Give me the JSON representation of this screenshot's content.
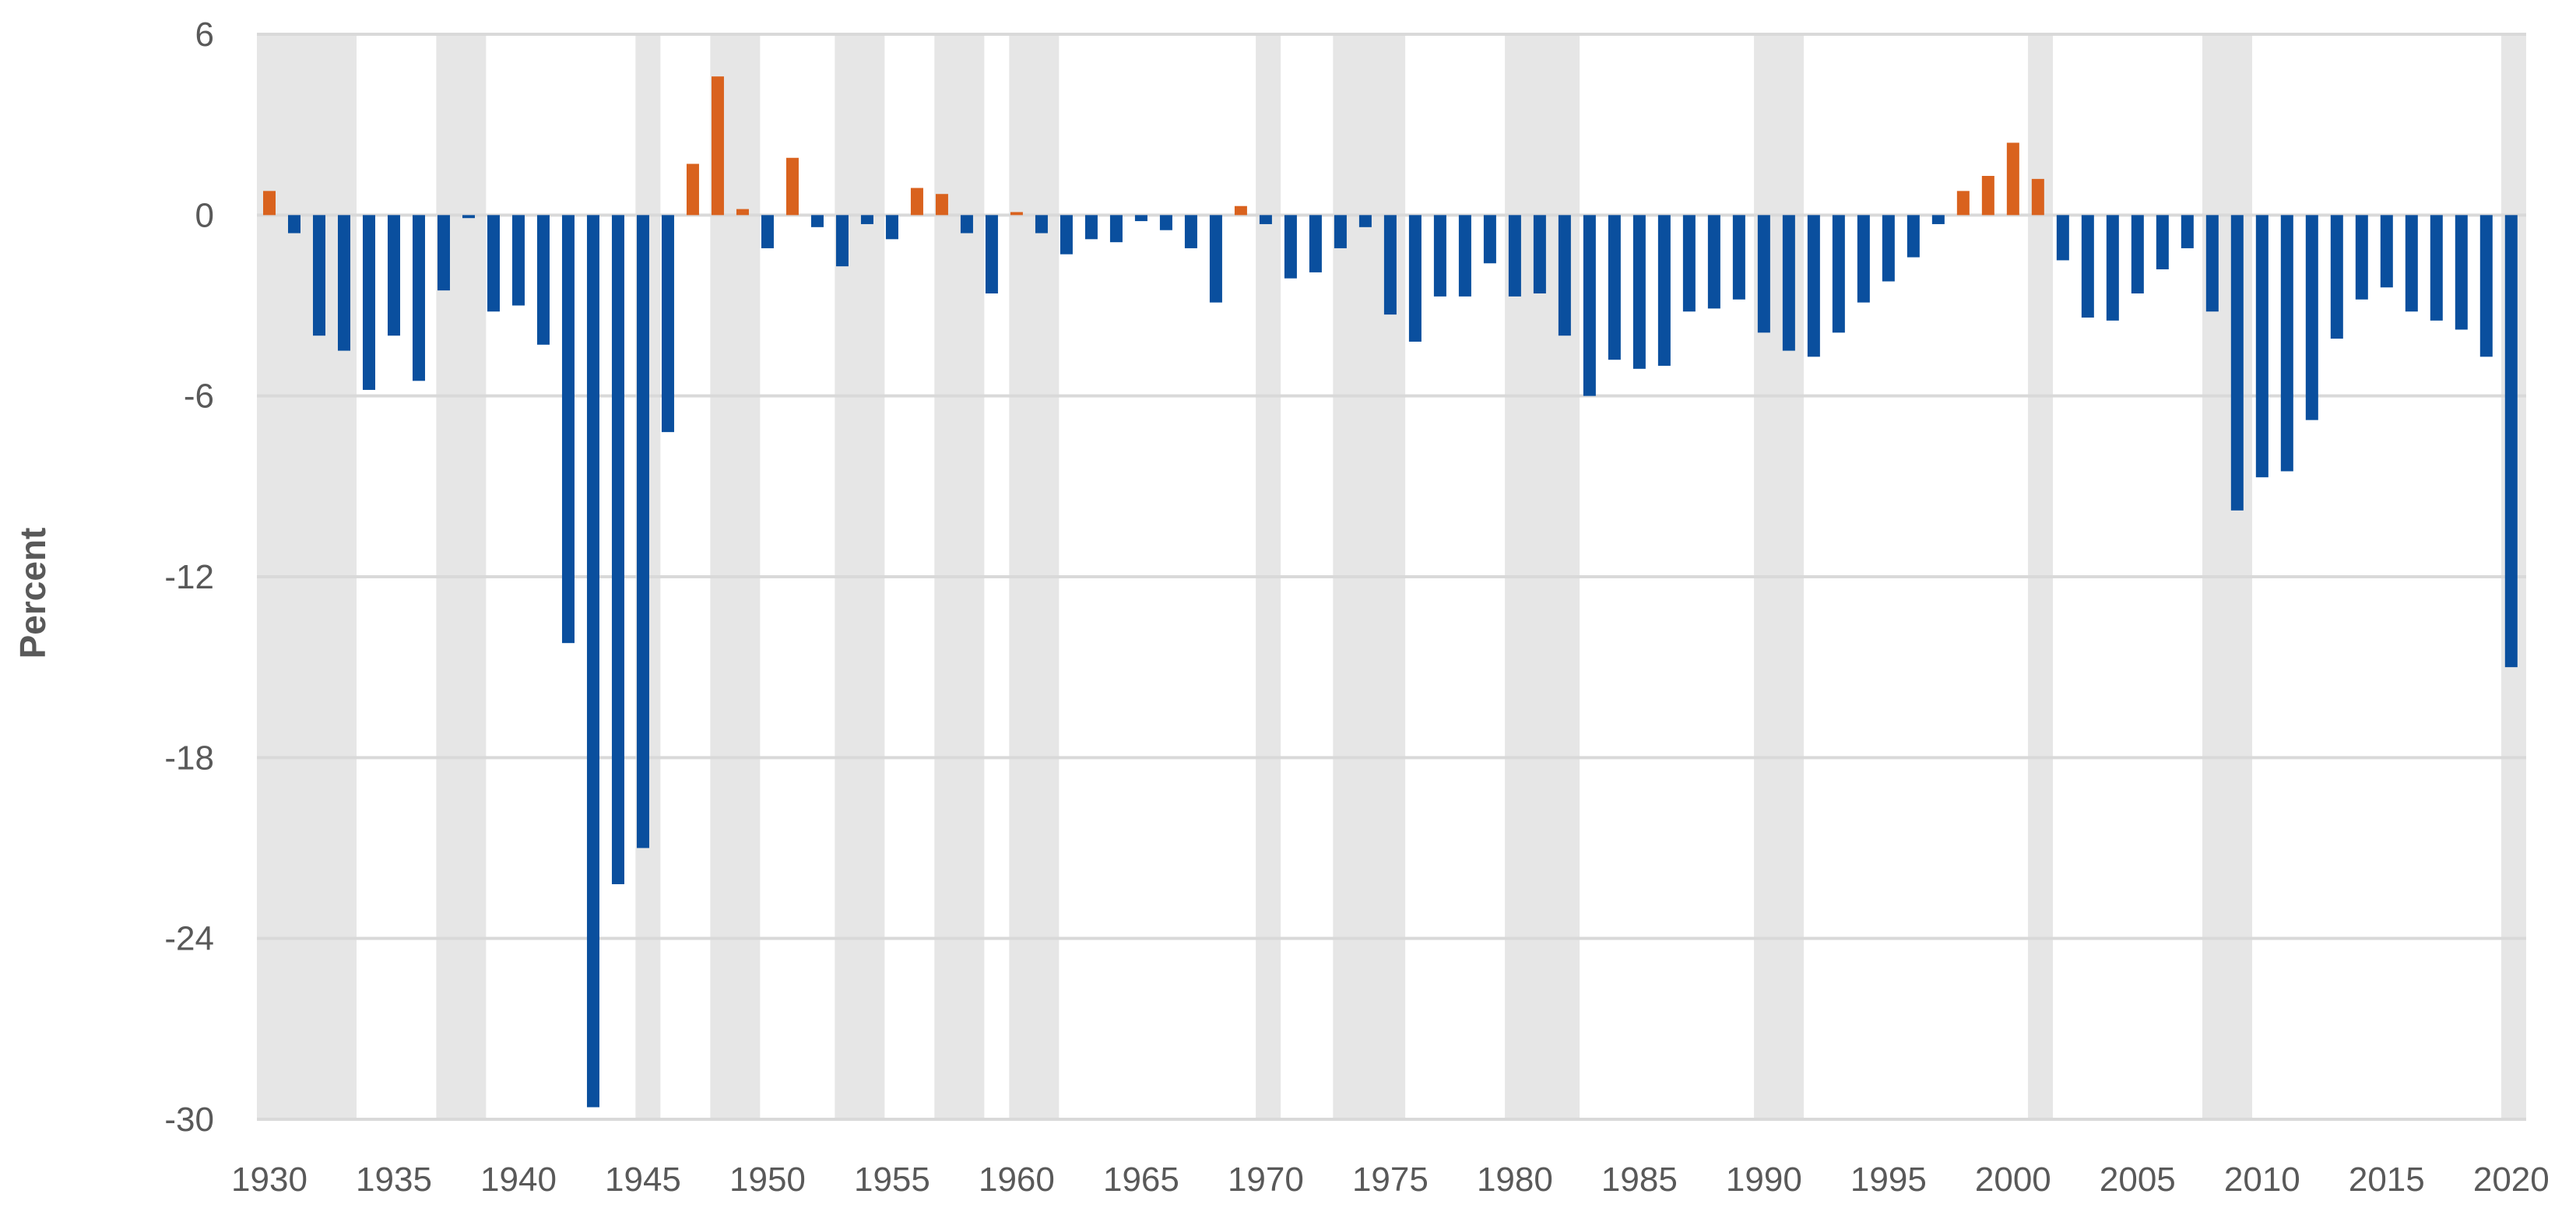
{
  "chart_data": {
    "type": "bar",
    "title": "",
    "xlabel": "",
    "ylabel": "Percent",
    "ylim": [
      -30,
      6
    ],
    "y_ticks": [
      6,
      0,
      -6,
      -12,
      -18,
      -24,
      -30
    ],
    "x_ticks": [
      1930,
      1935,
      1940,
      1945,
      1950,
      1955,
      1960,
      1965,
      1970,
      1975,
      1980,
      1985,
      1990,
      1995,
      2000,
      2005,
      2010,
      2015,
      2020
    ],
    "grid": "horizontal",
    "colors": {
      "deficit": "#0a4f9e",
      "surplus": "#d9621e",
      "recession": "#e6e6e6",
      "grid": "#d9d9d9",
      "text": "#595959"
    },
    "recession_shading": [
      [
        1929.5,
        1933.5
      ],
      [
        1936.7,
        1938.7
      ],
      [
        1944.7,
        1945.7
      ],
      [
        1947.7,
        1949.7
      ],
      [
        1952.7,
        1954.7
      ],
      [
        1956.7,
        1958.7
      ],
      [
        1959.7,
        1961.7
      ],
      [
        1969.6,
        1970.6
      ],
      [
        1972.7,
        1975.6
      ],
      [
        1979.6,
        1982.6
      ],
      [
        1989.6,
        1991.6
      ],
      [
        2000.6,
        2001.6
      ],
      [
        2007.6,
        2009.6
      ],
      [
        2019.6,
        2020.6
      ]
    ],
    "x": [
      1930,
      1931,
      1932,
      1933,
      1934,
      1935,
      1936,
      1937,
      1938,
      1939,
      1940,
      1941,
      1942,
      1943,
      1944,
      1945,
      1946,
      1947,
      1948,
      1949,
      1950,
      1951,
      1952,
      1953,
      1954,
      1955,
      1956,
      1957,
      1958,
      1959,
      1960,
      1961,
      1962,
      1963,
      1964,
      1965,
      1966,
      1967,
      1968,
      1969,
      1970,
      1971,
      1972,
      1973,
      1974,
      1975,
      1976,
      1977,
      1978,
      1979,
      1980,
      1981,
      1982,
      1983,
      1984,
      1985,
      1986,
      1987,
      1988,
      1989,
      1990,
      1991,
      1992,
      1993,
      1994,
      1995,
      1996,
      1997,
      1998,
      1999,
      2000,
      2001,
      2002,
      2003,
      2004,
      2005,
      2006,
      2007,
      2008,
      2009,
      2010,
      2011,
      2012,
      2013,
      2014,
      2015,
      2016,
      2017,
      2018,
      2019,
      2020
    ],
    "values": [
      0.8,
      -0.6,
      -4.0,
      -4.5,
      -5.8,
      -4.0,
      -5.5,
      -2.5,
      -0.1,
      -3.2,
      -3.0,
      -4.3,
      -14.2,
      -29.6,
      -22.2,
      -21.0,
      -7.2,
      1.7,
      4.6,
      0.2,
      -1.1,
      1.9,
      -0.4,
      -1.7,
      -0.3,
      -0.8,
      0.9,
      0.7,
      -0.6,
      -2.6,
      0.1,
      -0.6,
      -1.3,
      -0.8,
      -0.9,
      -0.2,
      -0.5,
      -1.1,
      -2.9,
      0.3,
      -0.3,
      -2.1,
      -1.9,
      -1.1,
      -0.4,
      -3.3,
      -4.2,
      -2.7,
      -2.7,
      -1.6,
      -2.7,
      -2.6,
      -4.0,
      -6.0,
      -4.8,
      -5.1,
      -5.0,
      -3.2,
      -3.1,
      -2.8,
      -3.9,
      -4.5,
      -4.7,
      -3.9,
      -2.9,
      -2.2,
      -1.4,
      -0.3,
      0.8,
      1.3,
      2.4,
      1.2,
      -1.5,
      -3.4,
      -3.5,
      -2.6,
      -1.8,
      -1.1,
      -3.2,
      -9.8,
      -8.7,
      -8.5,
      -6.8,
      -4.1,
      -2.8,
      -2.4,
      -3.2,
      -3.5,
      -3.8,
      -4.7,
      -15.0
    ]
  }
}
